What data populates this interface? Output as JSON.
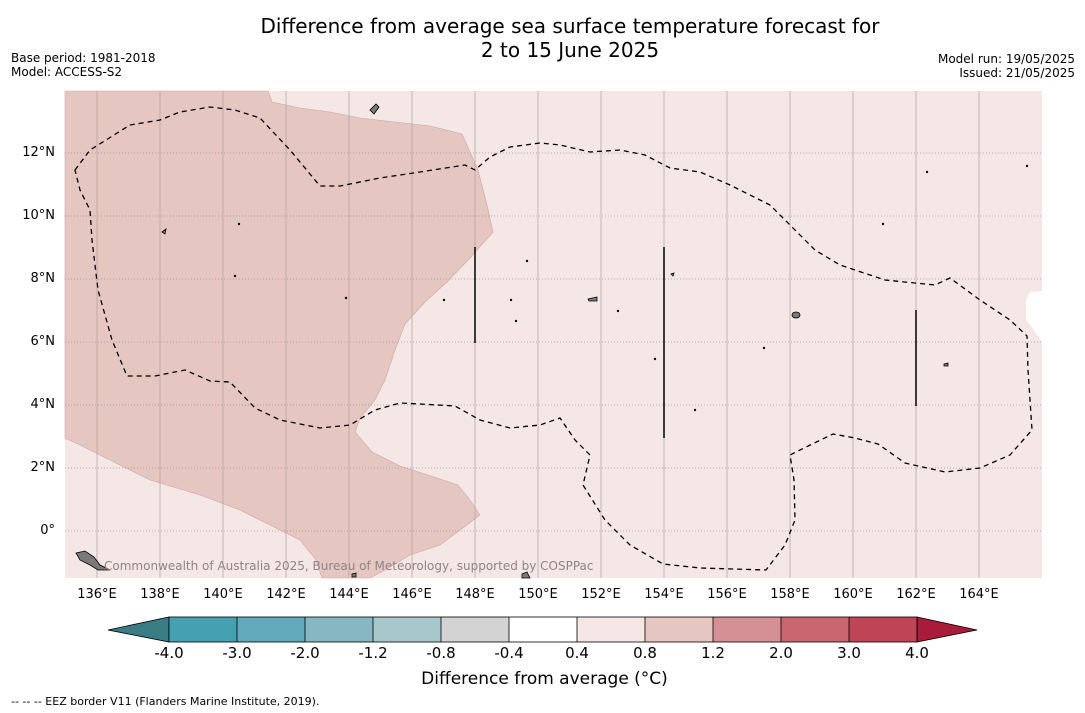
{
  "header": {
    "title_line1": "Difference from average sea surface temperature forecast for",
    "title_line2": "2 to 15 June 2025",
    "base_period": "Base period: 1981-2018",
    "model": "Model: ACCESS-S2",
    "model_run": "Model run: 19/05/2025",
    "issued": "Issued: 21/05/2025"
  },
  "map": {
    "latitude_labels": [
      "12°N",
      "10°N",
      "8°N",
      "6°N",
      "4°N",
      "2°N",
      "0°"
    ],
    "longitude_labels": [
      "136°E",
      "138°E",
      "140°E",
      "142°E",
      "144°E",
      "146°E",
      "148°E",
      "150°E",
      "152°E",
      "154°E",
      "156°E",
      "158°E",
      "160°E",
      "162°E",
      "164°E"
    ],
    "copyright": "Commonwealth of Australia 2025, Bureau of Meteorology, supported by COSPPac",
    "fill_colors": {
      "warm_0_8_to_1_2": "#e6c6c1",
      "warm_0_4_to_0_8": "#f4e7e5",
      "land": "#7a7a7a"
    }
  },
  "colorbar": {
    "tick_labels": [
      "-4.0",
      "-3.0",
      "-2.0",
      "-1.2",
      "-0.8",
      "-0.4",
      "0.4",
      "0.8",
      "1.2",
      "2.0",
      "3.0",
      "4.0"
    ],
    "colors": [
      "#45a0b2",
      "#62aabb",
      "#87b7c2",
      "#a8c7cb",
      "#d3d3d3",
      "#ffffff",
      "#f4e7e5",
      "#e6c6c1",
      "#d59096",
      "#c9666e",
      "#bf4455"
    ],
    "under_color": "#3a7c83",
    "over_color": "#a91b3a",
    "label": "Difference from average (°C)"
  },
  "footnote": "-- -- -- EEZ border V11 (Flanders Marine Institute, 2019)."
}
